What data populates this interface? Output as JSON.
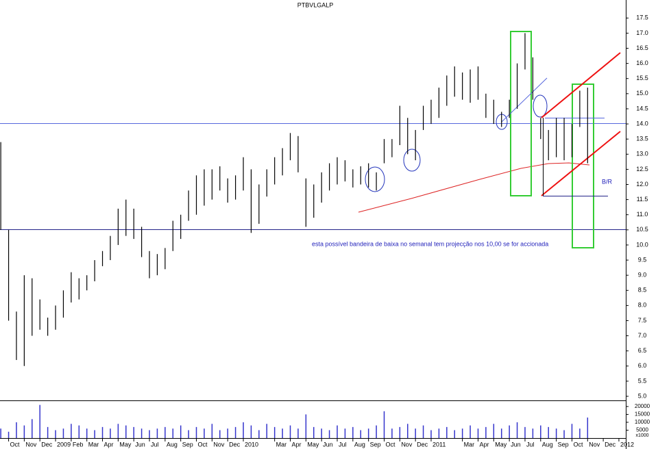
{
  "chart_data": {
    "type": "ohlc",
    "title": "PTBVLGALP",
    "annotations": [
      "esta possível bandeira de baixa no semanal tem projecção nos 10,00 se for accionada",
      "B/R"
    ],
    "x": [
      -0.5,
      0,
      0.5,
      1,
      1.5,
      2,
      2.5,
      3,
      3.5,
      4,
      4.5,
      5,
      5.5,
      6,
      6.5,
      7,
      7.5,
      8,
      8.5,
      9,
      9.5,
      10,
      10.5,
      11,
      11.5,
      12,
      12.5,
      13,
      13.5,
      14,
      14.5,
      15,
      15.5,
      16,
      16.5,
      17,
      17.5,
      18,
      18.5,
      19,
      19.5,
      20,
      20.5,
      21,
      21.5,
      22,
      22.5,
      23,
      23.5,
      24,
      24.5,
      25,
      25.5,
      26,
      26.5,
      27,
      27.5,
      28,
      28.5,
      29,
      29.5,
      30,
      30.5,
      31,
      31.5,
      32,
      32.5,
      33,
      33.5,
      34,
      34.5,
      35,
      35.5,
      36,
      36.5,
      37
    ],
    "high": [
      13.4,
      10.5,
      7.8,
      9.0,
      8.9,
      8.2,
      7.6,
      8.0,
      8.5,
      9.1,
      8.9,
      9.0,
      9.5,
      9.8,
      10.3,
      11.2,
      11.5,
      11.2,
      10.6,
      9.8,
      9.7,
      9.9,
      10.8,
      11.0,
      11.8,
      12.3,
      12.5,
      12.5,
      12.6,
      12.2,
      12.3,
      12.9,
      12.5,
      12.0,
      12.5,
      12.9,
      13.2,
      13.7,
      13.6,
      12.2,
      12.0,
      12.4,
      12.7,
      12.9,
      12.8,
      12.5,
      12.6,
      12.7,
      12.4,
      13.5,
      13.5,
      14.6,
      14.2,
      13.8,
      14.6,
      14.8,
      15.2,
      15.6,
      15.9,
      15.7,
      15.8,
      15.9,
      15.0,
      14.8,
      14.4,
      14.8,
      16.0,
      17.0,
      16.2,
      14.2,
      13.8,
      14.2,
      14.2,
      14.0,
      15.1,
      15.2
    ],
    "low": [
      10.5,
      7.5,
      6.2,
      6.0,
      7.0,
      7.2,
      7.0,
      7.2,
      7.6,
      8.1,
      8.2,
      8.5,
      8.8,
      9.3,
      9.5,
      10.0,
      10.3,
      10.2,
      9.6,
      8.9,
      9.0,
      9.2,
      9.8,
      10.2,
      10.8,
      11.0,
      11.3,
      11.5,
      11.8,
      11.4,
      11.5,
      11.8,
      10.4,
      10.7,
      11.6,
      12.0,
      12.3,
      12.8,
      12.4,
      10.6,
      10.9,
      11.4,
      11.8,
      12.0,
      12.1,
      11.9,
      12.0,
      11.9,
      11.8,
      12.7,
      12.9,
      13.3,
      13.0,
      12.8,
      13.8,
      14.0,
      14.2,
      14.6,
      14.9,
      14.8,
      14.7,
      14.8,
      14.2,
      14.0,
      13.9,
      14.2,
      14.5,
      15.8,
      14.8,
      13.5,
      12.8,
      12.9,
      12.8,
      12.9,
      13.9,
      12.7
    ],
    "volume": [
      6000,
      4000,
      10000,
      8000,
      12000,
      21000,
      7000,
      5000,
      6000,
      9000,
      8000,
      6000,
      5000,
      7000,
      6000,
      9000,
      8000,
      7000,
      6000,
      5000,
      6000,
      7000,
      6000,
      8000,
      5000,
      7000,
      6000,
      9000,
      5000,
      6000,
      7000,
      10000,
      8000,
      5000,
      9000,
      7000,
      6000,
      8000,
      6000,
      15000,
      7000,
      6000,
      5000,
      8000,
      6000,
      7000,
      5000,
      6000,
      8000,
      17000,
      6000,
      7000,
      9000,
      6000,
      8000,
      5000,
      6000,
      7000,
      5000,
      6000,
      8000,
      6000,
      7000,
      9000,
      6000,
      8000,
      10000,
      7000,
      6000,
      8000,
      7000,
      6000,
      5000,
      9000,
      6000,
      13000
    ],
    "bar_color": "#000000",
    "volume_color": "#3333cc",
    "xlim": [
      -0.55,
      39.44
    ],
    "xticks": [
      {
        "value": 0,
        "label": "Oct"
      },
      {
        "value": 1,
        "label": "Nov"
      },
      {
        "value": 2,
        "label": "Dec"
      },
      {
        "value": 3,
        "label": "2009"
      },
      {
        "value": 4,
        "label": "Feb"
      },
      {
        "value": 5,
        "label": "Mar"
      },
      {
        "value": 6,
        "label": "Apr"
      },
      {
        "value": 7,
        "label": "May"
      },
      {
        "value": 8,
        "label": "Jun"
      },
      {
        "value": 9,
        "label": "Jul"
      },
      {
        "value": 10,
        "label": "Aug"
      },
      {
        "value": 11,
        "label": "Sep"
      },
      {
        "value": 12,
        "label": "Oct"
      },
      {
        "value": 13,
        "label": "Nov"
      },
      {
        "value": 14,
        "label": "Dec"
      },
      {
        "value": 15,
        "label": "2010"
      },
      {
        "value": 17,
        "label": "Mar"
      },
      {
        "value": 18,
        "label": "Apr"
      },
      {
        "value": 19,
        "label": "May"
      },
      {
        "value": 20,
        "label": "Jun"
      },
      {
        "value": 21,
        "label": "Jul"
      },
      {
        "value": 22,
        "label": "Aug"
      },
      {
        "value": 23,
        "label": "Sep"
      },
      {
        "value": 24,
        "label": "Oct"
      },
      {
        "value": 25,
        "label": "Nov"
      },
      {
        "value": 26,
        "label": "Dec"
      },
      {
        "value": 27,
        "label": "2011"
      },
      {
        "value": 29,
        "label": "Mar"
      },
      {
        "value": 30,
        "label": "Apr"
      },
      {
        "value": 31,
        "label": "May"
      },
      {
        "value": 32,
        "label": "Jun"
      },
      {
        "value": 33,
        "label": "Jul"
      },
      {
        "value": 34,
        "label": "Aug"
      },
      {
        "value": 35,
        "label": "Sep"
      },
      {
        "value": 36,
        "label": "Oct"
      },
      {
        "value": 37,
        "label": "Nov"
      },
      {
        "value": 38,
        "label": "Dec"
      },
      {
        "value": 39,
        "label": "2012"
      }
    ],
    "ylim": [
      5.0,
      18.05
    ],
    "yticks": [
      {
        "value": 5,
        "label": "5.0"
      },
      5.5,
      {
        "value": 6,
        "label": "6.0"
      },
      6.5,
      {
        "value": 7,
        "label": "7.0"
      },
      7.5,
      {
        "value": 8,
        "label": "8.0"
      },
      8.5,
      {
        "value": 9,
        "label": "9.0"
      },
      9.5,
      {
        "value": 10,
        "label": "10.0"
      },
      10.5,
      {
        "value": 11,
        "label": "11.0"
      },
      11.5,
      {
        "value": 12,
        "label": "12.0"
      },
      12.5,
      {
        "value": 13,
        "label": "13.0"
      },
      13.5,
      {
        "value": 14,
        "label": "14.0"
      },
      14.5,
      {
        "value": 15,
        "label": "15.0"
      },
      15.5,
      {
        "value": 16,
        "label": "16.0"
      },
      16.5,
      {
        "value": 17,
        "label": "17.0"
      },
      17.5
    ],
    "volume_ylim": [
      0,
      23000
    ],
    "volume_yticks": [
      5000,
      10000,
      15000,
      20000
    ],
    "volume_unit": "x1000"
  }
}
